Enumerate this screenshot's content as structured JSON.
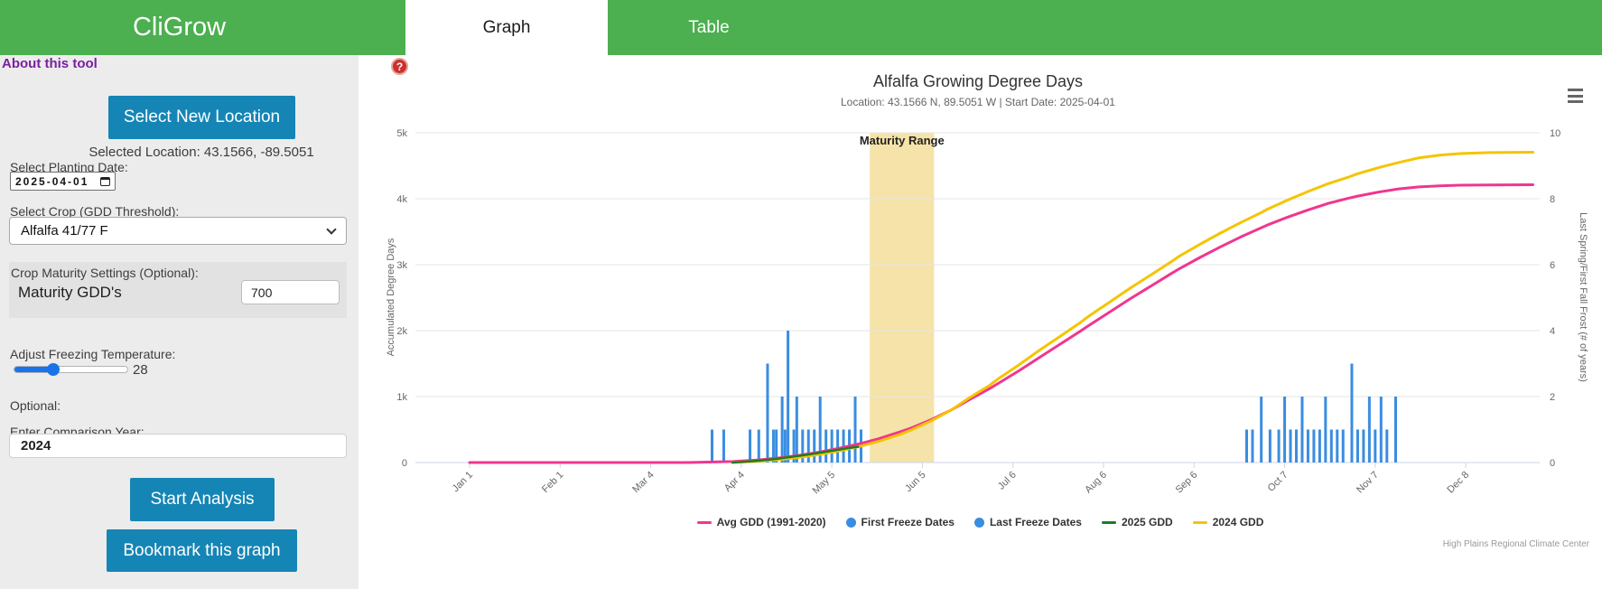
{
  "sidebar": {
    "app_title": "CliGrow",
    "about_link": "About this tool",
    "help_icon": "?",
    "select_location_button": "Select New Location",
    "selected_location": "Selected Location: 43.1566, -89.5051",
    "planting_date_label": "Select Planting Date:",
    "planting_date_value": "2025-04-01",
    "crop_label": "Select Crop (GDD Threshold):",
    "crop_value": "Alfalfa 41/77 F",
    "maturity_section_label": "Crop Maturity Settings (Optional):",
    "maturity_gdd_label": "Maturity GDD's",
    "maturity_gdd_value": "700",
    "freeze_label": "Adjust Freezing Temperature:",
    "freeze_value": "28",
    "optional_label": "Optional:",
    "comparison_label": "Enter Comparison Year:",
    "comparison_value": "2024",
    "start_button": "Start Analysis",
    "bookmark_button": "Bookmark this graph"
  },
  "tabs": [
    {
      "label": "Graph",
      "active": true
    },
    {
      "label": "Table",
      "active": false
    }
  ],
  "colors": {
    "header_green": "#4caf50",
    "button_blue": "#1585b5",
    "link_purple": "#7b1fa2",
    "help_red": "#c9302c",
    "avg_line": "#f0368f",
    "gdd_2024": "#f5c400",
    "gdd_2025": "#1e7d22",
    "freeze_bars": "#3a8de0",
    "maturity_band": "#f5e3a9"
  },
  "chart_data": {
    "type": "line",
    "title": "Alfalfa Growing Degree Days",
    "subtitle": "Location: 43.1566 N, 89.5051 W | Start Date: 2025-04-01",
    "credits": "High Plains Regional Climate Center",
    "left_axis": {
      "title": "Accumulated Degree Days",
      "ticks": [
        "0",
        "1k",
        "2k",
        "3k",
        "4k",
        "5k"
      ],
      "min": 0,
      "max": 5000,
      "grid": true
    },
    "right_axis": {
      "title": "Last Spring/First Fall Frost (# of years)",
      "ticks": [
        0,
        2,
        4,
        6,
        8,
        10
      ],
      "min": 0,
      "max": 10
    },
    "x_axis": {
      "labels": [
        "Jan 1",
        "Feb 1",
        "Mar 4",
        "Apr 4",
        "May 5",
        "Jun 5",
        "Jul 6",
        "Aug 6",
        "Sep 6",
        "Oct 7",
        "Nov 7",
        "Dec 8"
      ],
      "days": [
        1,
        32,
        63,
        94,
        125,
        156,
        187,
        218,
        249,
        280,
        311,
        342
      ],
      "unit": "day of year"
    },
    "plot_band": {
      "label": "Maturity Range",
      "start_day": 138,
      "end_day": 160,
      "color": "#f5e3a9"
    },
    "series": [
      {
        "name": "Avg GDD (1991-2020)",
        "type": "line",
        "color": "#f0368f",
        "marker": "line",
        "points": [
          [
            1,
            0
          ],
          [
            75,
            0
          ],
          [
            91,
            15
          ],
          [
            100,
            40
          ],
          [
            107,
            70
          ],
          [
            114,
            110
          ],
          [
            121,
            160
          ],
          [
            128,
            220
          ],
          [
            135,
            290
          ],
          [
            141,
            360
          ],
          [
            148,
            460
          ],
          [
            152,
            520
          ],
          [
            159,
            650
          ],
          [
            166,
            800
          ],
          [
            172,
            950
          ],
          [
            179,
            1120
          ],
          [
            182,
            1200
          ],
          [
            189,
            1390
          ],
          [
            196,
            1590
          ],
          [
            203,
            1790
          ],
          [
            210,
            1990
          ],
          [
            213,
            2080
          ],
          [
            220,
            2280
          ],
          [
            227,
            2480
          ],
          [
            234,
            2670
          ],
          [
            241,
            2860
          ],
          [
            244,
            2940
          ],
          [
            251,
            3110
          ],
          [
            258,
            3270
          ],
          [
            265,
            3420
          ],
          [
            272,
            3560
          ],
          [
            274,
            3600
          ],
          [
            281,
            3720
          ],
          [
            288,
            3830
          ],
          [
            295,
            3930
          ],
          [
            302,
            4010
          ],
          [
            305,
            4040
          ],
          [
            312,
            4100
          ],
          [
            319,
            4150
          ],
          [
            326,
            4180
          ],
          [
            333,
            4195
          ],
          [
            340,
            4205
          ],
          [
            350,
            4210
          ],
          [
            365,
            4212
          ]
        ]
      },
      {
        "name": "First Freeze Dates",
        "type": "column",
        "color": "#3a8de0",
        "marker": "circle",
        "points": [
          [
            267,
            1
          ],
          [
            269,
            1
          ],
          [
            272,
            2
          ],
          [
            275,
            1
          ],
          [
            278,
            1
          ],
          [
            280,
            2
          ],
          [
            282,
            1
          ],
          [
            284,
            1
          ],
          [
            286,
            2
          ],
          [
            288,
            1
          ],
          [
            290,
            1
          ],
          [
            292,
            1
          ],
          [
            294,
            2
          ],
          [
            296,
            1
          ],
          [
            298,
            1
          ],
          [
            300,
            1
          ],
          [
            303,
            3
          ],
          [
            305,
            1
          ],
          [
            307,
            1
          ],
          [
            309,
            2
          ],
          [
            311,
            1
          ],
          [
            313,
            2
          ],
          [
            315,
            1
          ],
          [
            318,
            2
          ]
        ]
      },
      {
        "name": "Last Freeze Dates",
        "type": "column",
        "color": "#3a8de0",
        "marker": "circle",
        "points": [
          [
            84,
            1
          ],
          [
            88,
            1
          ],
          [
            97,
            1
          ],
          [
            100,
            1
          ],
          [
            103,
            3
          ],
          [
            105,
            1
          ],
          [
            106,
            1
          ],
          [
            108,
            2
          ],
          [
            109,
            1
          ],
          [
            110,
            4
          ],
          [
            112,
            1
          ],
          [
            113,
            2
          ],
          [
            115,
            1
          ],
          [
            117,
            1
          ],
          [
            119,
            1
          ],
          [
            121,
            2
          ],
          [
            123,
            1
          ],
          [
            125,
            1
          ],
          [
            127,
            1
          ],
          [
            129,
            1
          ],
          [
            131,
            1
          ],
          [
            133,
            2
          ],
          [
            135,
            1
          ]
        ]
      },
      {
        "name": "2025 GDD",
        "type": "line",
        "color": "#1e7d22",
        "marker": "line",
        "points": [
          [
            91,
            0
          ],
          [
            98,
            20
          ],
          [
            105,
            50
          ],
          [
            112,
            90
          ],
          [
            119,
            135
          ],
          [
            126,
            185
          ],
          [
            130,
            215
          ],
          [
            134,
            240
          ]
        ]
      },
      {
        "name": "2024 GDD",
        "type": "line",
        "color": "#f5c400",
        "marker": "line",
        "points": [
          [
            91,
            0
          ],
          [
            100,
            20
          ],
          [
            107,
            45
          ],
          [
            114,
            80
          ],
          [
            121,
            125
          ],
          [
            128,
            180
          ],
          [
            135,
            250
          ],
          [
            141,
            320
          ],
          [
            148,
            420
          ],
          [
            152,
            490
          ],
          [
            159,
            630
          ],
          [
            166,
            800
          ],
          [
            172,
            980
          ],
          [
            179,
            1170
          ],
          [
            182,
            1270
          ],
          [
            189,
            1480
          ],
          [
            196,
            1700
          ],
          [
            203,
            1910
          ],
          [
            210,
            2120
          ],
          [
            213,
            2220
          ],
          [
            220,
            2430
          ],
          [
            227,
            2640
          ],
          [
            234,
            2840
          ],
          [
            241,
            3040
          ],
          [
            244,
            3130
          ],
          [
            251,
            3310
          ],
          [
            258,
            3480
          ],
          [
            265,
            3640
          ],
          [
            272,
            3790
          ],
          [
            274,
            3840
          ],
          [
            281,
            3980
          ],
          [
            288,
            4110
          ],
          [
            295,
            4230
          ],
          [
            302,
            4330
          ],
          [
            305,
            4380
          ],
          [
            312,
            4470
          ],
          [
            319,
            4550
          ],
          [
            326,
            4620
          ],
          [
            333,
            4660
          ],
          [
            340,
            4685
          ],
          [
            350,
            4700
          ],
          [
            365,
            4705
          ]
        ]
      }
    ]
  }
}
